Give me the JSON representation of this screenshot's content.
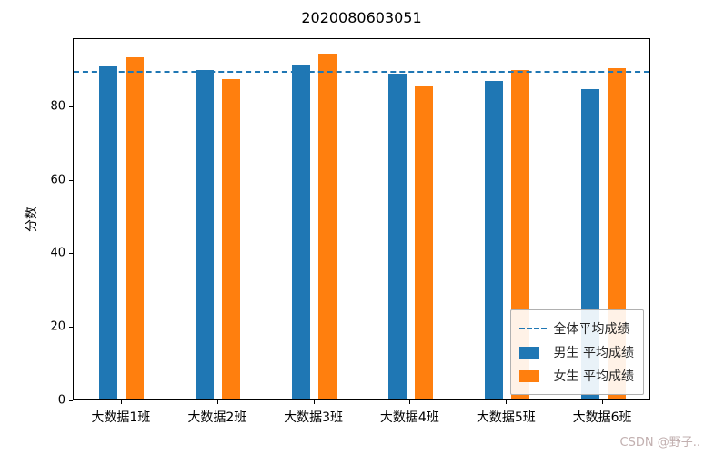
{
  "watermark": {
    "text": "CSDN @野子.."
  },
  "chart_data": {
    "type": "bar",
    "title": "2020080603051",
    "xlabel": "",
    "ylabel": "分数",
    "categories": [
      "大数据1班",
      "大数据2班",
      "大数据3班",
      "大数据4班",
      "大数据5班",
      "大数据6班"
    ],
    "series": [
      {
        "name": "男生 平均成绩",
        "color": "#1f77b4",
        "values": [
          90.5,
          89.5,
          91,
          88.5,
          86.5,
          84.5
        ]
      },
      {
        "name": "女生 平均成绩",
        "color": "#ff7f0e",
        "values": [
          93,
          87,
          94,
          85.5,
          89.5,
          90
        ]
      }
    ],
    "average_line": {
      "label": "全体平均成绩",
      "value": 88.8,
      "color": "#1f77b4",
      "style": "dashed"
    },
    "ylim": [
      0,
      98.5
    ],
    "yticks": [
      0,
      20,
      40,
      60,
      80
    ],
    "legend_position": "lower right",
    "grid": false
  }
}
